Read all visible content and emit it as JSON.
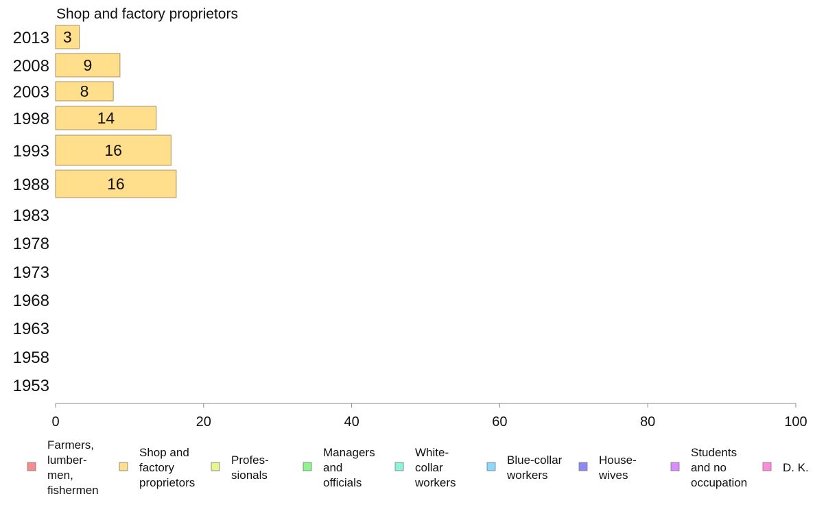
{
  "chart_data": {
    "type": "bar",
    "title": "Shop and factory proprietors",
    "xlim": [
      0,
      100
    ],
    "x_ticks": [
      "0",
      "20",
      "40",
      "60",
      "80",
      "100"
    ],
    "categories": [
      "2013",
      "2008",
      "2003",
      "1998",
      "1993",
      "1988",
      "1983",
      "1978",
      "1973",
      "1968",
      "1963",
      "1958",
      "1953"
    ],
    "series": [
      {
        "name": "Shop and factory proprietors",
        "color": "#ffdf8c",
        "values": [
          3,
          9,
          8,
          14,
          16,
          16,
          null,
          null,
          null,
          null,
          null,
          null,
          null
        ],
        "x_values": [
          3.2,
          8.7,
          7.8,
          13.6,
          15.6,
          16.3,
          null,
          null,
          null,
          null,
          null,
          null,
          null
        ]
      }
    ],
    "legend": [
      {
        "lines": [
          "Farmers,",
          "lumber-",
          "men,",
          "fishermen"
        ],
        "color": "#f78c8c"
      },
      {
        "lines": [
          "Shop and",
          "factory",
          "proprietors"
        ],
        "color": "#ffdf8c"
      },
      {
        "lines": [
          "Profes-",
          "sionals"
        ],
        "color": "#e6f58c"
      },
      {
        "lines": [
          "Managers",
          "and",
          "officials"
        ],
        "color": "#8cf58c"
      },
      {
        "lines": [
          "White-",
          "collar",
          "workers"
        ],
        "color": "#8cf5d9"
      },
      {
        "lines": [
          "Blue-collar",
          "workers"
        ],
        "color": "#8cd9ff"
      },
      {
        "lines": [
          "House-",
          "wives"
        ],
        "color": "#8c8cf5"
      },
      {
        "lines": [
          "Students",
          "and no",
          "occupation"
        ],
        "color": "#d98cff"
      },
      {
        "lines": [
          "D. K."
        ],
        "color": "#ff8cd9"
      }
    ],
    "legend_position": "bottom",
    "grid": false
  }
}
